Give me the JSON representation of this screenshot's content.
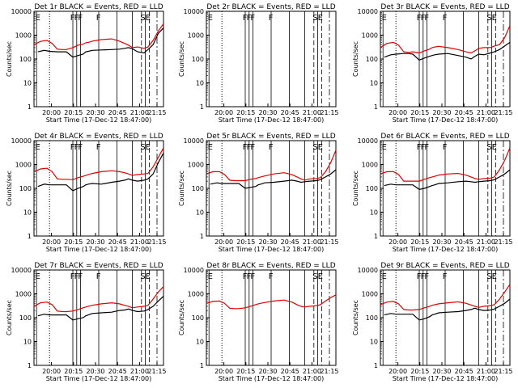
{
  "figure": {
    "xlabel": "Start Time (17-Dec-12 18:47:00)",
    "ylabel": "Counts/sec",
    "x_ticks": [
      "20:00",
      "20:15",
      "20:30",
      "20:45",
      "21:00",
      "21:15"
    ],
    "y_ticks": [
      "1",
      "10",
      "100",
      "1000",
      "10000"
    ],
    "colors": {
      "events": "#000000",
      "lld": "#e00000",
      "background": "#ffffff"
    }
  },
  "chart_data": [
    {
      "type": "line",
      "title": "Det 1r BLACK = Events, RED = LLD",
      "markers": [
        "E",
        "F",
        "F",
        "F",
        "F",
        "S",
        "E"
      ],
      "ylim": [
        1,
        10000
      ],
      "yscale": "log",
      "series": [
        {
          "name": "BLACK = Events",
          "x": [
            0,
            3,
            8,
            12,
            18,
            22,
            25,
            30,
            34,
            38,
            40,
            42,
            45,
            52,
            60,
            66,
            70,
            73,
            76,
            80,
            85,
            88,
            92,
            96,
            100
          ],
          "y": [
            null,
            200,
            230,
            210,
            200,
            200,
            200,
            120,
            140,
            160,
            200,
            210,
            230,
            240,
            250,
            260,
            280,
            300,
            270,
            200,
            180,
            250,
            400,
            1200,
            2000
          ]
        },
        {
          "name": "RED = LLD",
          "x": [
            0,
            5,
            10,
            14,
            18,
            22,
            25,
            30,
            34,
            38,
            40,
            42,
            45,
            52,
            60,
            66,
            70,
            73,
            76,
            80,
            85,
            88,
            92,
            96,
            100
          ],
          "y": [
            400,
            550,
            600,
            450,
            260,
            250,
            250,
            300,
            380,
            420,
            480,
            500,
            560,
            650,
            700,
            560,
            450,
            380,
            300,
            320,
            280,
            320,
            600,
            1500,
            3000
          ]
        }
      ]
    },
    {
      "type": "line",
      "title": "Det 2r BLACK = Events, RED = LLD",
      "markers": [
        "E",
        "F",
        "F",
        "F",
        "F",
        "S",
        "E"
      ],
      "ylim": [
        1,
        10000
      ],
      "yscale": "log",
      "series": []
    },
    {
      "type": "line",
      "title": "Det 3r BLACK = Events, RED = LLD",
      "markers": [
        "E",
        "F",
        "F",
        "F",
        "F",
        "S",
        "E"
      ],
      "ylim": [
        1,
        10000
      ],
      "yscale": "log",
      "series": [
        {
          "name": "BLACK = Events",
          "x": [
            0,
            3,
            8,
            12,
            18,
            22,
            25,
            30,
            34,
            38,
            40,
            42,
            45,
            52,
            60,
            66,
            70,
            73,
            76,
            80,
            85,
            88,
            92,
            96,
            100
          ],
          "y": [
            null,
            120,
            150,
            160,
            170,
            170,
            160,
            90,
            110,
            130,
            140,
            150,
            160,
            170,
            140,
            120,
            100,
            130,
            160,
            150,
            180,
            200,
            250,
            350,
            500
          ]
        },
        {
          "name": "RED = LLD",
          "x": [
            0,
            5,
            10,
            14,
            18,
            22,
            25,
            30,
            34,
            38,
            40,
            42,
            45,
            52,
            60,
            66,
            70,
            73,
            76,
            80,
            85,
            88,
            92,
            96,
            100
          ],
          "y": [
            300,
            450,
            500,
            380,
            200,
            190,
            200,
            180,
            220,
            260,
            300,
            320,
            340,
            300,
            250,
            200,
            180,
            220,
            280,
            300,
            300,
            350,
            400,
            800,
            2500
          ]
        }
      ]
    },
    {
      "type": "line",
      "title": "Det 4r BLACK = Events, RED = LLD",
      "markers": [
        "E",
        "F",
        "F",
        "F",
        "F",
        "S",
        "E"
      ],
      "ylim": [
        1,
        10000
      ],
      "yscale": "log",
      "series": [
        {
          "name": "BLACK = Events",
          "x": [
            0,
            3,
            8,
            12,
            18,
            22,
            25,
            30,
            34,
            38,
            40,
            42,
            45,
            52,
            60,
            66,
            70,
            73,
            76,
            80,
            85,
            88,
            92,
            96,
            100
          ],
          "y": [
            null,
            120,
            150,
            140,
            140,
            140,
            140,
            80,
            100,
            120,
            140,
            150,
            160,
            150,
            180,
            200,
            220,
            250,
            220,
            200,
            220,
            250,
            400,
            1200,
            3000
          ]
        },
        {
          "name": "RED = LLD",
          "x": [
            0,
            5,
            10,
            14,
            18,
            22,
            25,
            30,
            34,
            38,
            40,
            42,
            45,
            52,
            60,
            66,
            70,
            73,
            76,
            80,
            85,
            88,
            92,
            96,
            100
          ],
          "y": [
            500,
            650,
            700,
            500,
            250,
            240,
            240,
            230,
            280,
            320,
            350,
            380,
            420,
            500,
            550,
            500,
            450,
            400,
            350,
            380,
            400,
            420,
            800,
            2000,
            5000
          ]
        }
      ]
    },
    {
      "type": "line",
      "title": "Det 5r BLACK = Events, RED = LLD",
      "markers": [
        "E",
        "F",
        "F",
        "F",
        "F",
        "S",
        "E"
      ],
      "ylim": [
        1,
        10000
      ],
      "yscale": "log",
      "series": [
        {
          "name": "BLACK = Events",
          "x": [
            0,
            3,
            8,
            12,
            18,
            22,
            25,
            30,
            34,
            38,
            40,
            42,
            45,
            52,
            60,
            66,
            70,
            73,
            76,
            80,
            85,
            88,
            92,
            96,
            100
          ],
          "y": [
            null,
            150,
            170,
            160,
            160,
            160,
            160,
            100,
            110,
            120,
            140,
            150,
            170,
            180,
            200,
            220,
            200,
            180,
            190,
            200,
            210,
            230,
            300,
            400,
            600
          ]
        },
        {
          "name": "RED = LLD",
          "x": [
            0,
            5,
            10,
            14,
            18,
            22,
            25,
            30,
            34,
            38,
            40,
            42,
            45,
            52,
            60,
            66,
            70,
            73,
            76,
            80,
            85,
            88,
            92,
            96,
            100
          ],
          "y": [
            400,
            500,
            500,
            380,
            220,
            210,
            210,
            210,
            240,
            260,
            280,
            300,
            330,
            400,
            450,
            380,
            300,
            250,
            220,
            250,
            260,
            280,
            500,
            1200,
            4000
          ]
        }
      ]
    },
    {
      "type": "line",
      "title": "Det 6r BLACK = Events, RED = LLD",
      "markers": [
        "E",
        "F",
        "F",
        "F",
        "F",
        "S",
        "E"
      ],
      "ylim": [
        1,
        10000
      ],
      "yscale": "log",
      "series": [
        {
          "name": "BLACK = Events",
          "x": [
            0,
            3,
            8,
            12,
            18,
            22,
            25,
            30,
            34,
            38,
            40,
            42,
            45,
            52,
            60,
            66,
            70,
            73,
            76,
            80,
            85,
            88,
            92,
            96,
            100
          ],
          "y": [
            null,
            130,
            150,
            140,
            140,
            140,
            140,
            90,
            100,
            120,
            130,
            140,
            160,
            170,
            190,
            200,
            190,
            180,
            190,
            200,
            210,
            230,
            300,
            400,
            600
          ]
        },
        {
          "name": "RED = LLD",
          "x": [
            0,
            5,
            10,
            14,
            18,
            22,
            25,
            30,
            34,
            38,
            40,
            42,
            45,
            52,
            60,
            66,
            70,
            73,
            76,
            80,
            85,
            88,
            92,
            96,
            100
          ],
          "y": [
            400,
            500,
            500,
            380,
            200,
            200,
            200,
            200,
            240,
            280,
            300,
            320,
            360,
            400,
            420,
            360,
            300,
            260,
            240,
            260,
            270,
            300,
            600,
            1500,
            5000
          ]
        }
      ]
    },
    {
      "type": "line",
      "title": "Det 7r BLACK = Events, RED = LLD",
      "markers": [
        "E",
        "F",
        "F",
        "F",
        "F",
        "S",
        "E"
      ],
      "ylim": [
        1,
        10000
      ],
      "yscale": "log",
      "series": [
        {
          "name": "BLACK = Events",
          "x": [
            0,
            3,
            8,
            12,
            18,
            22,
            25,
            30,
            34,
            38,
            40,
            42,
            45,
            52,
            60,
            66,
            70,
            73,
            76,
            80,
            85,
            88,
            92,
            96,
            100
          ],
          "y": [
            null,
            120,
            140,
            130,
            130,
            130,
            130,
            80,
            90,
            100,
            120,
            130,
            150,
            160,
            170,
            200,
            210,
            230,
            200,
            180,
            190,
            220,
            300,
            500,
            800
          ]
        },
        {
          "name": "RED = LLD",
          "x": [
            0,
            5,
            10,
            14,
            18,
            22,
            25,
            30,
            34,
            38,
            40,
            42,
            45,
            52,
            60,
            66,
            70,
            73,
            76,
            80,
            85,
            88,
            92,
            96,
            100
          ],
          "y": [
            300,
            420,
            450,
            350,
            190,
            180,
            180,
            190,
            220,
            260,
            280,
            300,
            330,
            380,
            420,
            380,
            330,
            300,
            260,
            280,
            300,
            330,
            600,
            1200,
            2000
          ]
        }
      ]
    },
    {
      "type": "line",
      "title": "Det 8r BLACK = Events, RED = LLD",
      "markers": [
        "E",
        "F",
        "F",
        "F",
        "F",
        "S",
        "E"
      ],
      "ylim": [
        1,
        10000
      ],
      "yscale": "log",
      "series": [
        {
          "name": "BLACK = Events",
          "x": [
            0,
            3,
            8,
            12,
            18,
            22,
            25,
            30,
            34,
            38,
            40,
            42,
            45,
            52,
            60,
            66,
            70,
            73,
            76,
            80,
            85,
            88,
            92,
            96,
            100
          ],
          "y": [
            null,
            null,
            null,
            null,
            null,
            null,
            null,
            null,
            null,
            null,
            null,
            null,
            null,
            null,
            null,
            null,
            null,
            null,
            null,
            null,
            null,
            null,
            null,
            null,
            null
          ]
        },
        {
          "name": "RED = LLD",
          "x": [
            0,
            5,
            10,
            14,
            18,
            22,
            25,
            30,
            34,
            38,
            40,
            42,
            45,
            52,
            60,
            66,
            70,
            73,
            76,
            80,
            85,
            88,
            92,
            96,
            100
          ],
          "y": [
            400,
            480,
            500,
            400,
            250,
            240,
            240,
            260,
            300,
            350,
            380,
            400,
            430,
            500,
            550,
            450,
            350,
            300,
            280,
            300,
            320,
            350,
            500,
            700,
            900
          ]
        }
      ]
    },
    {
      "type": "line",
      "title": "Det 9r BLACK = Events, RED = LLD",
      "markers": [
        "E",
        "F",
        "F",
        "F",
        "F",
        "S",
        "E"
      ],
      "ylim": [
        1,
        10000
      ],
      "yscale": "log",
      "series": [
        {
          "name": "BLACK = Events",
          "x": [
            0,
            3,
            8,
            12,
            18,
            22,
            25,
            30,
            34,
            38,
            40,
            42,
            45,
            52,
            60,
            66,
            70,
            73,
            76,
            80,
            85,
            88,
            92,
            96,
            100
          ],
          "y": [
            null,
            130,
            150,
            140,
            140,
            140,
            140,
            80,
            90,
            110,
            130,
            140,
            160,
            170,
            180,
            200,
            220,
            250,
            220,
            200,
            210,
            230,
            300,
            400,
            600
          ]
        },
        {
          "name": "RED = LLD",
          "x": [
            0,
            5,
            10,
            14,
            18,
            22,
            25,
            30,
            34,
            38,
            40,
            42,
            45,
            52,
            60,
            66,
            70,
            73,
            76,
            80,
            85,
            88,
            92,
            96,
            100
          ],
          "y": [
            350,
            450,
            480,
            380,
            220,
            210,
            210,
            220,
            260,
            300,
            330,
            350,
            380,
            420,
            460,
            400,
            340,
            300,
            270,
            300,
            320,
            350,
            600,
            1200,
            2500
          ]
        }
      ]
    }
  ]
}
